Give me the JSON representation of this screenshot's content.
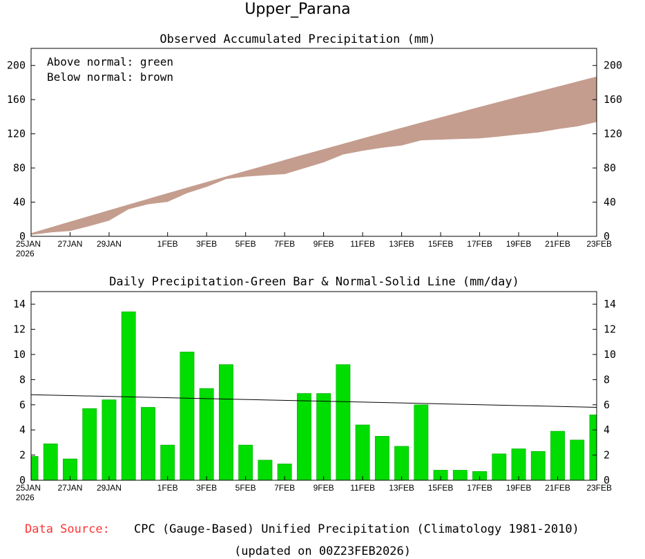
{
  "title": "Upper_Parana",
  "colors": {
    "above": "#00cc00",
    "below": "#c49d8e",
    "bar": "#00dd00",
    "data_source_label": "#ff3333"
  },
  "footer": {
    "source_label": "Data Source:",
    "source_text": "CPC (Gauge-Based) Unified Precipitation (Climatology 1981-2010)",
    "updated": "(updated on 00Z23FEB2026)"
  },
  "chart_data": [
    {
      "type": "area",
      "title": "Observed Accumulated Precipitation (mm)",
      "legend_lines": [
        "Above normal: green",
        "Below normal: brown"
      ],
      "x_tick_labels": [
        "25JAN",
        "27JAN",
        "29JAN",
        "1FEB",
        "3FEB",
        "5FEB",
        "7FEB",
        "9FEB",
        "11FEB",
        "13FEB",
        "15FEB",
        "17FEB",
        "19FEB",
        "21FEB",
        "23FEB"
      ],
      "x_year_label": "2026",
      "x_tick_days": [
        0,
        2,
        4,
        7,
        9,
        11,
        13,
        15,
        17,
        19,
        21,
        23,
        25,
        27,
        29
      ],
      "ylim": [
        0,
        220
      ],
      "yticks": [
        0,
        40,
        80,
        120,
        160,
        200
      ],
      "series": [
        {
          "name": "Normal accumulated",
          "values": [
            3.4,
            10.2,
            17.0,
            23.6,
            30.3,
            37.0,
            43.6,
            50.2,
            56.8,
            63.3,
            69.8,
            76.3,
            82.7,
            89.1,
            95.5,
            101.8,
            108.1,
            114.4,
            120.6,
            126.8,
            132.9,
            139.0,
            145.1,
            151.2,
            157.2,
            163.2,
            169.1,
            175.0,
            180.9,
            186.7
          ]
        },
        {
          "name": "Observed accumulated",
          "values": [
            1.9,
            4.8,
            6.5,
            12.2,
            18.6,
            32.0,
            37.8,
            40.6,
            50.8,
            58.1,
            67.3,
            70.1,
            71.7,
            73.0,
            79.9,
            86.8,
            96.0,
            100.4,
            103.9,
            106.6,
            112.6,
            113.4,
            114.2,
            114.9,
            117.0,
            119.5,
            121.8,
            125.7,
            128.9,
            134.1
          ]
        }
      ]
    },
    {
      "type": "bar",
      "title": "Daily Precipitation-Green Bar & Normal-Solid Line (mm/day)",
      "x_tick_labels": [
        "25JAN",
        "27JAN",
        "29JAN",
        "1FEB",
        "3FEB",
        "5FEB",
        "7FEB",
        "9FEB",
        "11FEB",
        "13FEB",
        "15FEB",
        "17FEB",
        "19FEB",
        "21FEB",
        "23FEB"
      ],
      "x_year_label": "2026",
      "x_tick_days": [
        0,
        2,
        4,
        7,
        9,
        11,
        13,
        15,
        17,
        19,
        21,
        23,
        25,
        27,
        29
      ],
      "ylim": [
        0,
        15
      ],
      "yticks": [
        0,
        2,
        4,
        6,
        8,
        10,
        12,
        14
      ],
      "values": [
        1.9,
        2.9,
        1.7,
        5.7,
        6.4,
        13.4,
        5.8,
        2.8,
        10.2,
        7.3,
        9.2,
        2.8,
        1.6,
        1.3,
        6.9,
        6.9,
        9.2,
        4.4,
        3.5,
        2.7,
        6.0,
        0.8,
        0.8,
        0.7,
        2.1,
        2.5,
        2.3,
        3.9,
        3.2,
        5.2
      ],
      "normal_line": {
        "start": 6.8,
        "end": 5.8
      }
    }
  ]
}
